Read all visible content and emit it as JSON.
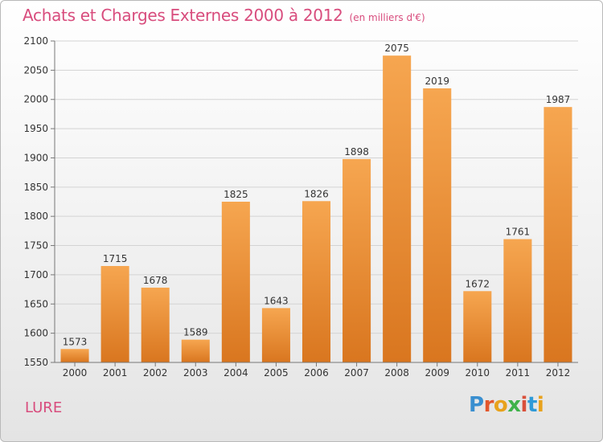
{
  "header": {
    "title": "Achats et Charges Externes 2000 à 2012",
    "subtitle": "(en milliers d'€)"
  },
  "footer": {
    "place": "LURE",
    "logo": {
      "letters": [
        "P",
        "r",
        "o",
        "x",
        "i",
        "t",
        "i"
      ],
      "colors": [
        "#3a8fd0",
        "#e2572d",
        "#e8a21c",
        "#3fb24a",
        "#d9503b",
        "#2e9ad8",
        "#e8a21c"
      ]
    }
  },
  "colors": {
    "bar_light": "#f6a650",
    "bar_dark": "#d9761f",
    "grid": "#d3d3d3",
    "axis": "#777777"
  },
  "chart_data": {
    "type": "bar",
    "categories": [
      "2000",
      "2001",
      "2002",
      "2003",
      "2004",
      "2005",
      "2006",
      "2007",
      "2008",
      "2009",
      "2010",
      "2011",
      "2012"
    ],
    "values": [
      1573,
      1715,
      1678,
      1589,
      1825,
      1643,
      1826,
      1898,
      2075,
      2019,
      1672,
      1761,
      1987
    ],
    "ylim": [
      1550,
      2100
    ],
    "yticks": [
      1550,
      1600,
      1650,
      1700,
      1750,
      1800,
      1850,
      1900,
      1950,
      2000,
      2050,
      2100
    ],
    "grid": true,
    "data_labels": true
  }
}
